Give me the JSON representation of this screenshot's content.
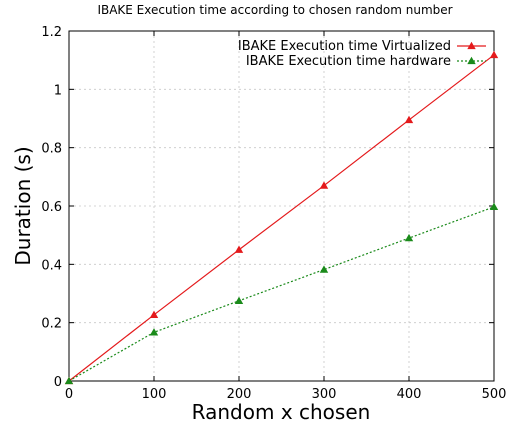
{
  "chart_data": {
    "type": "line",
    "title": "IBAKE Execution time according to chosen random number",
    "xlabel": "Random x chosen",
    "ylabel": "Duration (s)",
    "xlim": [
      0,
      500
    ],
    "ylim": [
      0,
      1.2
    ],
    "xticks": [
      "0",
      "100",
      "200",
      "300",
      "400",
      "500"
    ],
    "yticks": [
      "0",
      "0.2",
      "0.4",
      "0.6",
      "0.8",
      "1",
      "1.2"
    ],
    "grid": true,
    "legend_position": "top-right",
    "x": [
      0,
      100,
      200,
      300,
      400,
      500
    ],
    "series": [
      {
        "name": "IBAKE Execution time Virtualized",
        "values": [
          0,
          0.227,
          0.45,
          0.67,
          0.895,
          1.118
        ],
        "color": "#e41a1c",
        "style": "solid",
        "marker": "triangle"
      },
      {
        "name": "IBAKE Execution time hardware",
        "values": [
          0,
          0.167,
          0.275,
          0.382,
          0.49,
          0.597
        ],
        "color": "#1a8a1a",
        "style": "dotted",
        "marker": "triangle"
      }
    ]
  }
}
